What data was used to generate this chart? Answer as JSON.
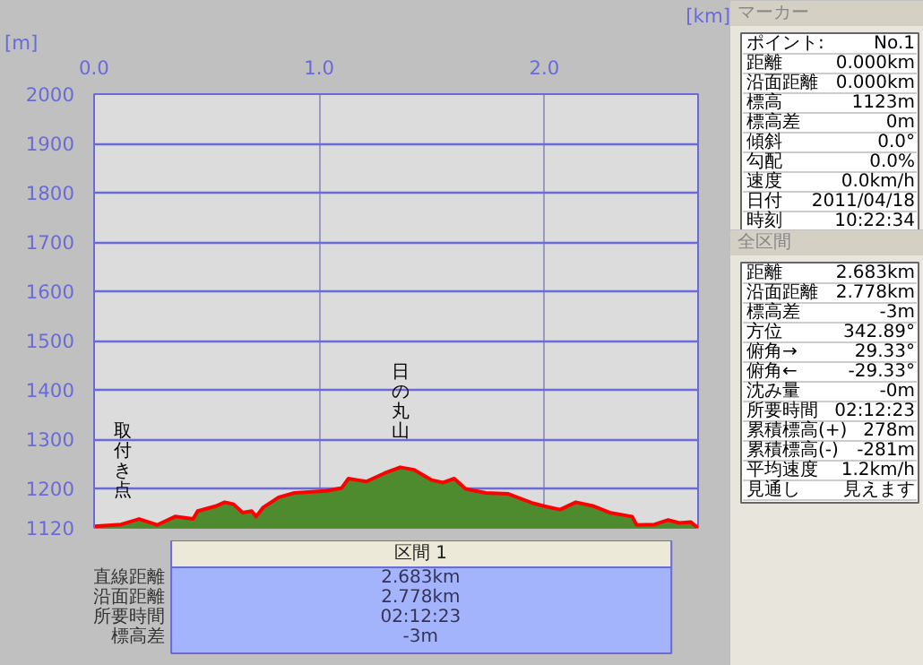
{
  "chart_data": [
    {
      "type": "area",
      "xlabel": "[km]",
      "ylabel": "[m]",
      "x": [
        0,
        0.12,
        0.2,
        0.28,
        0.36,
        0.44,
        0.46,
        0.54,
        0.58,
        0.62,
        0.66,
        0.7,
        0.72,
        0.75,
        0.82,
        0.89,
        0.97,
        1.03,
        1.1,
        1.13,
        1.17,
        1.21,
        1.29,
        1.36,
        1.42,
        1.5,
        1.55,
        1.6,
        1.65,
        1.74,
        1.84,
        1.95,
        2.0,
        2.07,
        2.14,
        2.22,
        2.29,
        2.39,
        2.41,
        2.49,
        2.55,
        2.6,
        2.65,
        2.683
      ],
      "series": [
        {
          "color": "#4e8a2e",
          "values": [
            1123,
            1127,
            1138,
            1126,
            1143,
            1138,
            1154,
            1164,
            1172,
            1168,
            1151,
            1154,
            1143,
            1161,
            1182,
            1191,
            1193,
            1195,
            1201,
            1220,
            1217,
            1214,
            1231,
            1243,
            1238,
            1217,
            1212,
            1220,
            1199,
            1191,
            1189,
            1170,
            1164,
            1157,
            1172,
            1164,
            1151,
            1143,
            1126,
            1127,
            1136,
            1130,
            1132,
            1120
          ]
        }
      ],
      "xlim": [
        0,
        2.683
      ],
      "xticks": [
        {
          "value": 0,
          "label": "0.0"
        },
        {
          "value": 1,
          "label": "1.0"
        },
        {
          "value": 2,
          "label": "2.0"
        }
      ],
      "ylim": [
        1120,
        2000
      ],
      "yticks": [
        1120,
        1200,
        1300,
        1400,
        1500,
        1600,
        1700,
        1800,
        1900,
        2000
      ],
      "grid": true,
      "annotations": [
        {
          "text": "取付き点",
          "x": 0,
          "y": 1123
        },
        {
          "text": "日の丸山",
          "x": 1.36,
          "y": 1243
        }
      ]
    },
    {
      "type": "other",
      "title": "区間 1",
      "annotations": [
        "直線距離",
        "2.683km",
        "沿面距離",
        "2.778km",
        "所要時間",
        "02:12:23",
        "標高差",
        "-3m"
      ]
    },
    {
      "type": "other",
      "title": "マーカー",
      "annotations": [
        "ポイント:",
        "No.1",
        "距離",
        "0.000km",
        "沿面距離",
        "0.000km",
        "標高",
        "1123m",
        "標高差",
        "0m",
        "傾斜",
        "0.0°",
        "勾配",
        "0.0%",
        "速度",
        "0.0km/h",
        "日付",
        "2011/04/18",
        "時刻",
        "10:22:34"
      ]
    },
    {
      "type": "other",
      "title": "全区間",
      "annotations": [
        "距離",
        "2.683km",
        "沿面距離",
        "2.778km",
        "標高差",
        "-3m",
        "方位",
        "342.89°",
        "俯角→",
        "29.33°",
        "俯角←",
        "-29.33°",
        "沈み量",
        "-0m",
        "所要時間",
        "02:12:23",
        "累積標高(+)",
        "278m",
        "累積標高(-)",
        "-281m",
        "平均速度",
        "1.2km/h",
        "見通し",
        "見えます"
      ]
    }
  ]
}
